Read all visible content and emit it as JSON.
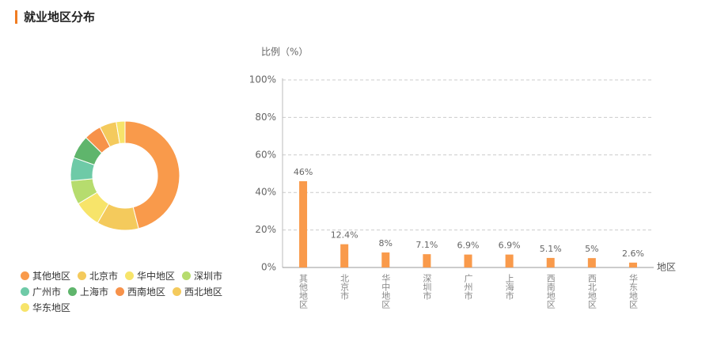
{
  "title": "就业地区分布",
  "chart_data": [
    {
      "type": "pie",
      "donut": true,
      "legend": "bottom",
      "categories": [
        "其他地区",
        "北京市",
        "华中地区",
        "深圳市",
        "广州市",
        "上海市",
        "西南地区",
        "西北地区",
        "华东地区"
      ],
      "values": [
        46,
        12.4,
        8,
        7.1,
        6.9,
        6.9,
        5.1,
        5,
        2.6
      ],
      "colors": [
        "#f99a4b",
        "#f4ca5c",
        "#f7e46a",
        "#b6dc6e",
        "#6ecaa7",
        "#5fb56c",
        "#f7924a",
        "#f4ca5c",
        "#f7e46a"
      ]
    },
    {
      "type": "bar",
      "ylabel": "比例（%）",
      "xlabel": "地区",
      "categories": [
        "其他地区",
        "北京市",
        "华中地区",
        "深圳市",
        "广州市",
        "上海市",
        "西南地区",
        "西北地区",
        "华东地区"
      ],
      "values": [
        46,
        12.4,
        8,
        7.1,
        6.9,
        6.9,
        5.1,
        5,
        2.6
      ],
      "value_labels": [
        "46%",
        "12.4%",
        "8%",
        "7.1%",
        "6.9%",
        "6.9%",
        "5.1%",
        "5%",
        "2.6%"
      ],
      "color": "#f99a4b",
      "grid": true,
      "ylim": [
        0,
        100
      ],
      "yticks": [
        {
          "value": 0,
          "label": "0%"
        },
        {
          "value": 20,
          "label": "20%"
        },
        {
          "value": 40,
          "label": "40%"
        },
        {
          "value": 60,
          "label": "60%"
        },
        {
          "value": 80,
          "label": "80%"
        },
        {
          "value": 100,
          "label": "100%"
        }
      ]
    }
  ]
}
